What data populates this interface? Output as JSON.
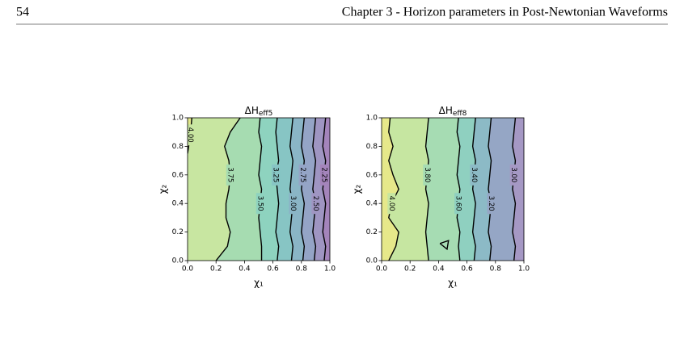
{
  "header": {
    "page": "54",
    "title": "Chapter 3 - Horizon parameters in Post-Newtonian Waveforms"
  },
  "chart_data": [
    {
      "type": "contour",
      "title": {
        "main": "ΔH",
        "sub": "eff5"
      },
      "xlabel": "χ₁",
      "ylabel": "χ₂",
      "xlim": [
        0,
        1
      ],
      "ylim": [
        0,
        1
      ],
      "xticks": [
        {
          "value": 0,
          "label": "0.0"
        },
        {
          "value": 0.2,
          "label": "0.2"
        },
        {
          "value": 0.4,
          "label": "0.4"
        },
        {
          "value": 0.6,
          "label": "0.6"
        },
        {
          "value": 0.8,
          "label": "0.8"
        },
        {
          "value": 1,
          "label": "1.0"
        }
      ],
      "yticks": [
        {
          "value": 0,
          "label": "0.0"
        },
        {
          "value": 0.2,
          "label": "0.2"
        },
        {
          "value": 0.4,
          "label": "0.4"
        },
        {
          "value": 0.6,
          "label": "0.6"
        },
        {
          "value": 0.8,
          "label": "0.8"
        },
        {
          "value": 1,
          "label": "1.0"
        }
      ],
      "band_colors": [
        "#e3e88b",
        "#c8e6a1",
        "#a6dcb1",
        "#8ed3bf",
        "#87c5c4",
        "#8ab5c6",
        "#94a4c6",
        "#9f95c2",
        "#a484bb"
      ],
      "contours": [
        {
          "level": 4.0,
          "label": "4.00",
          "x": [
            0,
            0.02,
            0.03
          ],
          "y": [
            0.75,
            0.88,
            1
          ]
        },
        {
          "level": 3.75,
          "label": "3.75",
          "x": [
            0.2,
            0.28,
            0.3,
            0.27,
            0.27,
            0.29,
            0.3,
            0.29,
            0.26,
            0.3,
            0.37
          ],
          "y": [
            0,
            0.1,
            0.2,
            0.3,
            0.4,
            0.5,
            0.6,
            0.7,
            0.8,
            0.9,
            1
          ]
        },
        {
          "level": 3.5,
          "label": "3.50",
          "x": [
            0.52,
            0.52,
            0.51,
            0.5,
            0.51,
            0.52,
            0.5,
            0.51,
            0.52,
            0.5,
            0.51
          ],
          "y": [
            0,
            0.1,
            0.2,
            0.3,
            0.4,
            0.5,
            0.6,
            0.7,
            0.8,
            0.9,
            1
          ]
        },
        {
          "level": 3.25,
          "label": "3.25",
          "x": [
            0.63,
            0.64,
            0.62,
            0.63,
            0.64,
            0.63,
            0.62,
            0.64,
            0.63,
            0.62,
            0.63
          ],
          "y": [
            0,
            0.1,
            0.2,
            0.3,
            0.4,
            0.5,
            0.6,
            0.7,
            0.8,
            0.9,
            1
          ]
        },
        {
          "level": 3.0,
          "label": "3.00",
          "x": [
            0.73,
            0.74,
            0.72,
            0.73,
            0.74,
            0.72,
            0.73,
            0.74,
            0.72,
            0.73,
            0.74
          ],
          "y": [
            0,
            0.1,
            0.2,
            0.3,
            0.4,
            0.5,
            0.6,
            0.7,
            0.8,
            0.9,
            1
          ]
        },
        {
          "level": 2.75,
          "label": "2.75",
          "x": [
            0.81,
            0.82,
            0.8,
            0.81,
            0.82,
            0.8,
            0.81,
            0.82,
            0.8,
            0.81,
            0.82
          ],
          "y": [
            0,
            0.1,
            0.2,
            0.3,
            0.4,
            0.5,
            0.6,
            0.7,
            0.8,
            0.9,
            1
          ]
        },
        {
          "level": 2.5,
          "label": "2.50",
          "x": [
            0.89,
            0.9,
            0.88,
            0.89,
            0.9,
            0.88,
            0.89,
            0.9,
            0.88,
            0.89,
            0.9
          ],
          "y": [
            0,
            0.1,
            0.2,
            0.3,
            0.4,
            0.5,
            0.6,
            0.7,
            0.8,
            0.9,
            1
          ]
        },
        {
          "level": 2.25,
          "label": "2.25",
          "x": [
            0.96,
            0.97,
            0.95,
            0.96,
            0.97,
            0.95,
            0.96,
            0.97,
            0.95,
            0.96,
            0.97
          ],
          "y": [
            0,
            0.1,
            0.2,
            0.3,
            0.4,
            0.5,
            0.6,
            0.7,
            0.8,
            0.9,
            1
          ]
        }
      ]
    },
    {
      "type": "contour",
      "title": {
        "main": "ΔH",
        "sub": "eff8"
      },
      "xlabel": "χ₁",
      "ylabel": "χ₂",
      "xlim": [
        0,
        1
      ],
      "ylim": [
        0,
        1
      ],
      "xticks": [
        {
          "value": 0,
          "label": "0.0"
        },
        {
          "value": 0.2,
          "label": "0.2"
        },
        {
          "value": 0.4,
          "label": "0.4"
        },
        {
          "value": 0.6,
          "label": "0.6"
        },
        {
          "value": 0.8,
          "label": "0.8"
        },
        {
          "value": 1,
          "label": "1.0"
        }
      ],
      "yticks": [
        {
          "value": 0,
          "label": "0.0"
        },
        {
          "value": 0.2,
          "label": "0.2"
        },
        {
          "value": 0.4,
          "label": "0.4"
        },
        {
          "value": 0.6,
          "label": "0.6"
        },
        {
          "value": 0.8,
          "label": "0.8"
        },
        {
          "value": 1,
          "label": "1.0"
        }
      ],
      "band_colors": [
        "#e6e88a",
        "#c6e6a1",
        "#a6dcb3",
        "#8fd0c0",
        "#8cbac6",
        "#95a6c5",
        "#a598c4"
      ],
      "contours": [
        {
          "level": 4.0,
          "label": "4.00",
          "x": [
            0.05,
            0.1,
            0.12,
            0.05,
            0.07,
            0.12,
            0.08,
            0.05,
            0.08,
            0.05,
            0.06
          ],
          "y": [
            0,
            0.1,
            0.2,
            0.3,
            0.4,
            0.5,
            0.6,
            0.7,
            0.8,
            0.9,
            1
          ]
        },
        {
          "level": 3.8,
          "label": "3.80",
          "x": [
            0.33,
            0.32,
            0.31,
            0.32,
            0.33,
            0.31,
            0.32,
            0.33,
            0.31,
            0.32,
            0.33
          ],
          "y": [
            0,
            0.1,
            0.2,
            0.3,
            0.4,
            0.5,
            0.6,
            0.7,
            0.8,
            0.9,
            1
          ]
        },
        {
          "level": 3.6,
          "label": "3.60",
          "x": [
            0.55,
            0.54,
            0.55,
            0.53,
            0.54,
            0.55,
            0.53,
            0.54,
            0.55,
            0.53,
            0.54
          ],
          "y": [
            0,
            0.1,
            0.2,
            0.3,
            0.4,
            0.5,
            0.6,
            0.7,
            0.8,
            0.9,
            1
          ]
        },
        {
          "level": 3.4,
          "label": "3.40",
          "x": [
            0.65,
            0.66,
            0.64,
            0.65,
            0.66,
            0.64,
            0.65,
            0.66,
            0.64,
            0.65,
            0.66
          ],
          "y": [
            0,
            0.1,
            0.2,
            0.3,
            0.4,
            0.5,
            0.6,
            0.7,
            0.8,
            0.9,
            1
          ]
        },
        {
          "level": 3.2,
          "label": "3.20",
          "x": [
            0.76,
            0.77,
            0.75,
            0.76,
            0.77,
            0.75,
            0.76,
            0.77,
            0.75,
            0.76,
            0.77
          ],
          "y": [
            0,
            0.1,
            0.2,
            0.3,
            0.4,
            0.5,
            0.6,
            0.7,
            0.8,
            0.9,
            1
          ]
        },
        {
          "level": 3.0,
          "label": "3.00",
          "x": [
            0.93,
            0.94,
            0.92,
            0.93,
            0.94,
            0.92,
            0.93,
            0.94,
            0.92,
            0.93,
            0.94
          ],
          "y": [
            0,
            0.1,
            0.2,
            0.3,
            0.4,
            0.5,
            0.6,
            0.7,
            0.8,
            0.9,
            1
          ]
        },
        {
          "level": 3.8,
          "closed": true,
          "x": [
            0.41,
            0.47,
            0.46,
            0.41
          ],
          "y": [
            0.12,
            0.14,
            0.08,
            0.12
          ]
        }
      ]
    }
  ]
}
